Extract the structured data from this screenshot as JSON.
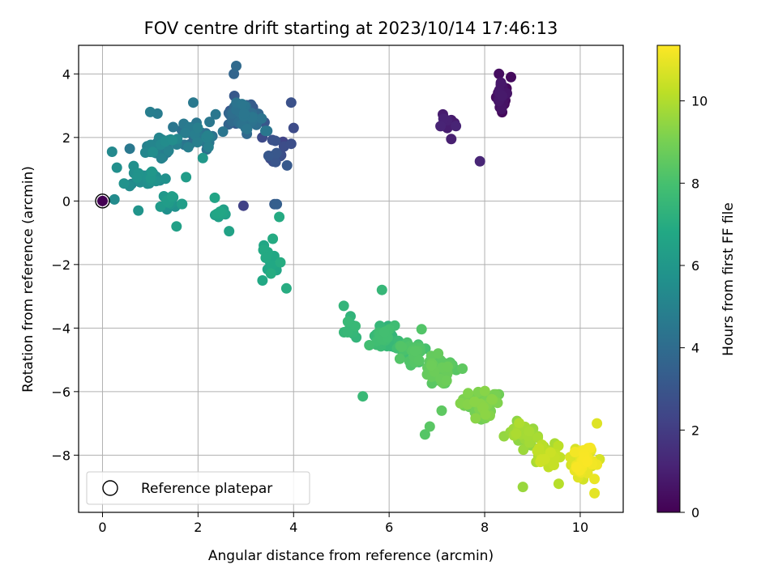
{
  "chart_data": {
    "type": "scatter",
    "title": "FOV centre drift starting at 2023/10/14 17:46:13",
    "xlabel": "Angular distance from reference (arcmin)",
    "ylabel": "Rotation from reference (arcmin)",
    "xlim": [
      -0.5,
      10.9
    ],
    "ylim": [
      -9.8,
      4.9
    ],
    "xticks": [
      0,
      2,
      4,
      6,
      8,
      10
    ],
    "xtick_labels": [
      "0",
      "2",
      "4",
      "6",
      "8",
      "10"
    ],
    "yticks": [
      4,
      2,
      0,
      -2,
      -4,
      -6,
      -8
    ],
    "ytick_labels": [
      "4",
      "2",
      "0",
      "−2",
      "−4",
      "−6",
      "−8"
    ],
    "grid": true,
    "legend": {
      "position": "lower-left",
      "entries": [
        "Reference platepar"
      ]
    },
    "colorbar": {
      "label": "Hours from first FF file",
      "range": [
        0,
        11.35
      ],
      "ticks": [
        0,
        2,
        4,
        6,
        8,
        10
      ],
      "tick_labels": [
        "0",
        "2",
        "4",
        "6",
        "8",
        "10"
      ],
      "colormap": "viridis"
    },
    "reference_point": {
      "x": 0,
      "y": 0,
      "hours": 0
    },
    "clusters": [
      {
        "center": [
          8.35,
          3.3
        ],
        "spread": [
          0.12,
          0.45
        ],
        "hours": [
          0.2,
          0.8
        ],
        "count": 42
      },
      {
        "center": [
          7.2,
          2.55
        ],
        "spread": [
          0.3,
          0.25
        ],
        "hours": [
          0.8,
          1.3
        ],
        "count": 8
      },
      {
        "center": [
          3.6,
          1.7
        ],
        "spread": [
          0.35,
          0.6
        ],
        "hours": [
          2.2,
          3.2
        ],
        "count": 14
      },
      {
        "center": [
          3.0,
          2.7
        ],
        "spread": [
          0.55,
          0.55
        ],
        "hours": [
          3.0,
          4.5
        ],
        "count": 55
      },
      {
        "center": [
          2.0,
          2.1
        ],
        "spread": [
          0.5,
          0.55
        ],
        "hours": [
          4.0,
          5.0
        ],
        "count": 35
      },
      {
        "center": [
          1.2,
          1.7
        ],
        "spread": [
          0.45,
          0.5
        ],
        "hours": [
          4.5,
          5.5
        ],
        "count": 30
      },
      {
        "center": [
          0.9,
          0.7
        ],
        "spread": [
          0.45,
          0.35
        ],
        "hours": [
          5.0,
          6.0
        ],
        "count": 28
      },
      {
        "center": [
          1.5,
          0.0
        ],
        "spread": [
          0.3,
          0.35
        ],
        "hours": [
          5.6,
          6.4
        ],
        "count": 14
      },
      {
        "center": [
          2.5,
          -0.4
        ],
        "spread": [
          0.25,
          0.3
        ],
        "hours": [
          6.3,
          6.8
        ],
        "count": 8
      },
      {
        "center": [
          3.55,
          -1.8
        ],
        "spread": [
          0.2,
          0.6
        ],
        "hours": [
          6.7,
          7.0
        ],
        "count": 14
      },
      {
        "center": [
          5.2,
          -4.1
        ],
        "spread": [
          0.15,
          0.5
        ],
        "hours": [
          7.3,
          7.6
        ],
        "count": 10
      },
      {
        "center": [
          5.9,
          -4.3
        ],
        "spread": [
          0.3,
          0.45
        ],
        "hours": [
          7.3,
          7.9
        ],
        "count": 45
      },
      {
        "center": [
          6.5,
          -4.7
        ],
        "spread": [
          0.35,
          0.5
        ],
        "hours": [
          7.8,
          8.4
        ],
        "count": 35
      },
      {
        "center": [
          7.1,
          -5.3
        ],
        "spread": [
          0.35,
          0.55
        ],
        "hours": [
          8.2,
          8.8
        ],
        "count": 55
      },
      {
        "center": [
          7.9,
          -6.4
        ],
        "spread": [
          0.45,
          0.55
        ],
        "hours": [
          8.7,
          9.4
        ],
        "count": 50
      },
      {
        "center": [
          8.8,
          -7.4
        ],
        "spread": [
          0.35,
          0.45
        ],
        "hours": [
          9.3,
          10.0
        ],
        "count": 40
      },
      {
        "center": [
          9.3,
          -8.0
        ],
        "spread": [
          0.35,
          0.45
        ],
        "hours": [
          9.8,
          10.5
        ],
        "count": 45
      },
      {
        "center": [
          10.05,
          -8.2
        ],
        "spread": [
          0.28,
          0.55
        ],
        "hours": [
          10.4,
          11.3
        ],
        "count": 60
      }
    ],
    "points": [
      {
        "x": 0.25,
        "y": 0.05,
        "hours": 5.4
      },
      {
        "x": 0.2,
        "y": 1.55,
        "hours": 5.3
      },
      {
        "x": 0.3,
        "y": 1.05,
        "hours": 5.6
      },
      {
        "x": 0.45,
        "y": 0.55,
        "hours": 5.7
      },
      {
        "x": 0.75,
        "y": -0.3,
        "hours": 5.8
      },
      {
        "x": 1.0,
        "y": 2.8,
        "hours": 4.8
      },
      {
        "x": 1.15,
        "y": 2.75,
        "hours": 4.7
      },
      {
        "x": 1.55,
        "y": -0.8,
        "hours": 6.4
      },
      {
        "x": 1.75,
        "y": 0.75,
        "hours": 6.2
      },
      {
        "x": 1.9,
        "y": 3.1,
        "hours": 4.6
      },
      {
        "x": 2.1,
        "y": 1.35,
        "hours": 6.0
      },
      {
        "x": 2.35,
        "y": 0.1,
        "hours": 6.6
      },
      {
        "x": 2.65,
        "y": -0.95,
        "hours": 6.5
      },
      {
        "x": 2.8,
        "y": 4.25,
        "hours": 3.9
      },
      {
        "x": 2.75,
        "y": 4.0,
        "hours": 3.7
      },
      {
        "x": 2.95,
        "y": -0.15,
        "hours": 2.2
      },
      {
        "x": 3.35,
        "y": -2.5,
        "hours": 6.8
      },
      {
        "x": 3.65,
        "y": -0.1,
        "hours": 3.4
      },
      {
        "x": 3.6,
        "y": -0.1,
        "hours": 3.3
      },
      {
        "x": 3.7,
        "y": -0.5,
        "hours": 6.9
      },
      {
        "x": 3.85,
        "y": -2.75,
        "hours": 7.0
      },
      {
        "x": 3.95,
        "y": 3.1,
        "hours": 2.8
      },
      {
        "x": 3.95,
        "y": 1.8,
        "hours": 2.7
      },
      {
        "x": 4.0,
        "y": 2.3,
        "hours": 2.6
      },
      {
        "x": 5.45,
        "y": -6.15,
        "hours": 7.6
      },
      {
        "x": 5.05,
        "y": -3.3,
        "hours": 7.4
      },
      {
        "x": 5.85,
        "y": -2.8,
        "hours": 7.5
      },
      {
        "x": 6.75,
        "y": -7.35,
        "hours": 8.3
      },
      {
        "x": 6.85,
        "y": -7.1,
        "hours": 8.4
      },
      {
        "x": 7.1,
        "y": -6.6,
        "hours": 8.5
      },
      {
        "x": 7.9,
        "y": 1.25,
        "hours": 1.2
      },
      {
        "x": 8.3,
        "y": 4.0,
        "hours": 0.4
      },
      {
        "x": 8.55,
        "y": 3.9,
        "hours": 0.3
      },
      {
        "x": 7.3,
        "y": 1.95,
        "hours": 1.0
      },
      {
        "x": 8.8,
        "y": -9.0,
        "hours": 9.6
      },
      {
        "x": 9.55,
        "y": -8.9,
        "hours": 10.1
      },
      {
        "x": 10.3,
        "y": -9.2,
        "hours": 10.9
      },
      {
        "x": 10.35,
        "y": -7.0,
        "hours": 10.8
      },
      {
        "x": 10.35,
        "y": -8.3,
        "hours": 11.1
      },
      {
        "x": 10.3,
        "y": -8.75,
        "hours": 11.0
      }
    ]
  }
}
